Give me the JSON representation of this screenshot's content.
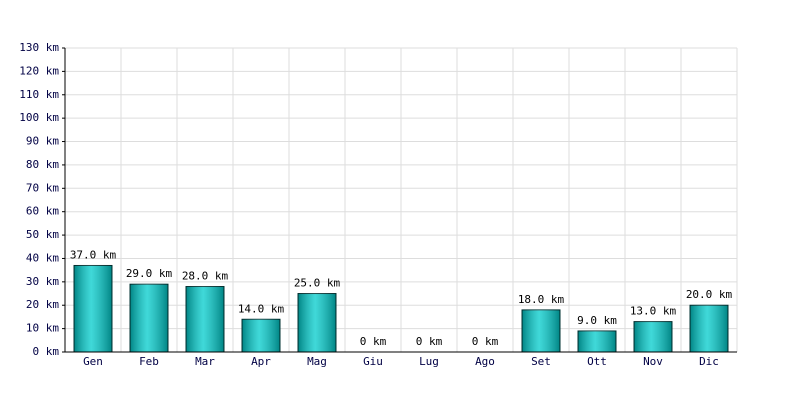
{
  "chart_data": {
    "type": "bar",
    "categories": [
      "Gen",
      "Feb",
      "Mar",
      "Apr",
      "Mag",
      "Giu",
      "Lug",
      "Ago",
      "Set",
      "Ott",
      "Nov",
      "Dic"
    ],
    "values": [
      37,
      29,
      28,
      14,
      25,
      0,
      0,
      0,
      18,
      9,
      13,
      20
    ],
    "value_labels": [
      "37.0 km",
      "29.0 km",
      "28.0 km",
      "14.0 km",
      "25.0 km",
      "0 km",
      "0 km",
      "0 km",
      "18.0 km",
      "9.0 km",
      "13.0 km",
      "20.0 km"
    ],
    "color": "#00cccc",
    "ylim": [
      0,
      130
    ],
    "yticks": [
      {
        "value": 0,
        "label": "0 km"
      },
      {
        "value": 10,
        "label": "10 km"
      },
      {
        "value": 20,
        "label": "20 km"
      },
      {
        "value": 30,
        "label": "30 km"
      },
      {
        "value": 40,
        "label": "40 km"
      },
      {
        "value": 50,
        "label": "50 km"
      },
      {
        "value": 60,
        "label": "60 km"
      },
      {
        "value": 70,
        "label": "70 km"
      },
      {
        "value": 80,
        "label": "80 km"
      },
      {
        "value": 90,
        "label": "90 km"
      },
      {
        "value": 100,
        "label": "100 km"
      },
      {
        "value": 110,
        "label": "110 km"
      },
      {
        "value": 120,
        "label": "120 km"
      },
      {
        "value": 130,
        "label": "130 km"
      }
    ],
    "grid": true
  }
}
